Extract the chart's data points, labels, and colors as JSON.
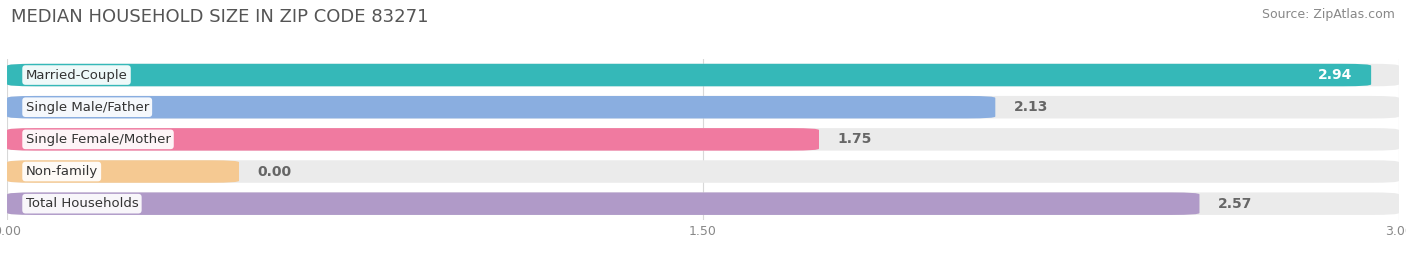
{
  "title": "MEDIAN HOUSEHOLD SIZE IN ZIP CODE 83271",
  "source": "Source: ZipAtlas.com",
  "categories": [
    "Married-Couple",
    "Single Male/Father",
    "Single Female/Mother",
    "Non-family",
    "Total Households"
  ],
  "values": [
    2.94,
    2.13,
    1.75,
    0.0,
    2.57
  ],
  "display_values": [
    "2.94",
    "2.13",
    "1.75",
    "0.00",
    "2.57"
  ],
  "bar_colors": [
    "#35b8b8",
    "#8aaee0",
    "#f07aA0",
    "#f5c992",
    "#b09ac8"
  ],
  "bar_bg_color": "#ebebeb",
  "bar_bg_color2": "#f5f5f5",
  "xlim": [
    0,
    3.0
  ],
  "xticks": [
    0.0,
    1.5,
    3.0
  ],
  "xtick_labels": [
    "0.00",
    "1.50",
    "3.00"
  ],
  "value_color_inside": "#ffffff",
  "value_color_outside": "#666666",
  "title_fontsize": 13,
  "source_fontsize": 9,
  "bar_label_fontsize": 10,
  "category_label_fontsize": 9.5,
  "background_color": "#ffffff",
  "grid_color": "#d8d8d8",
  "nonfamily_bar_width": 0.5
}
